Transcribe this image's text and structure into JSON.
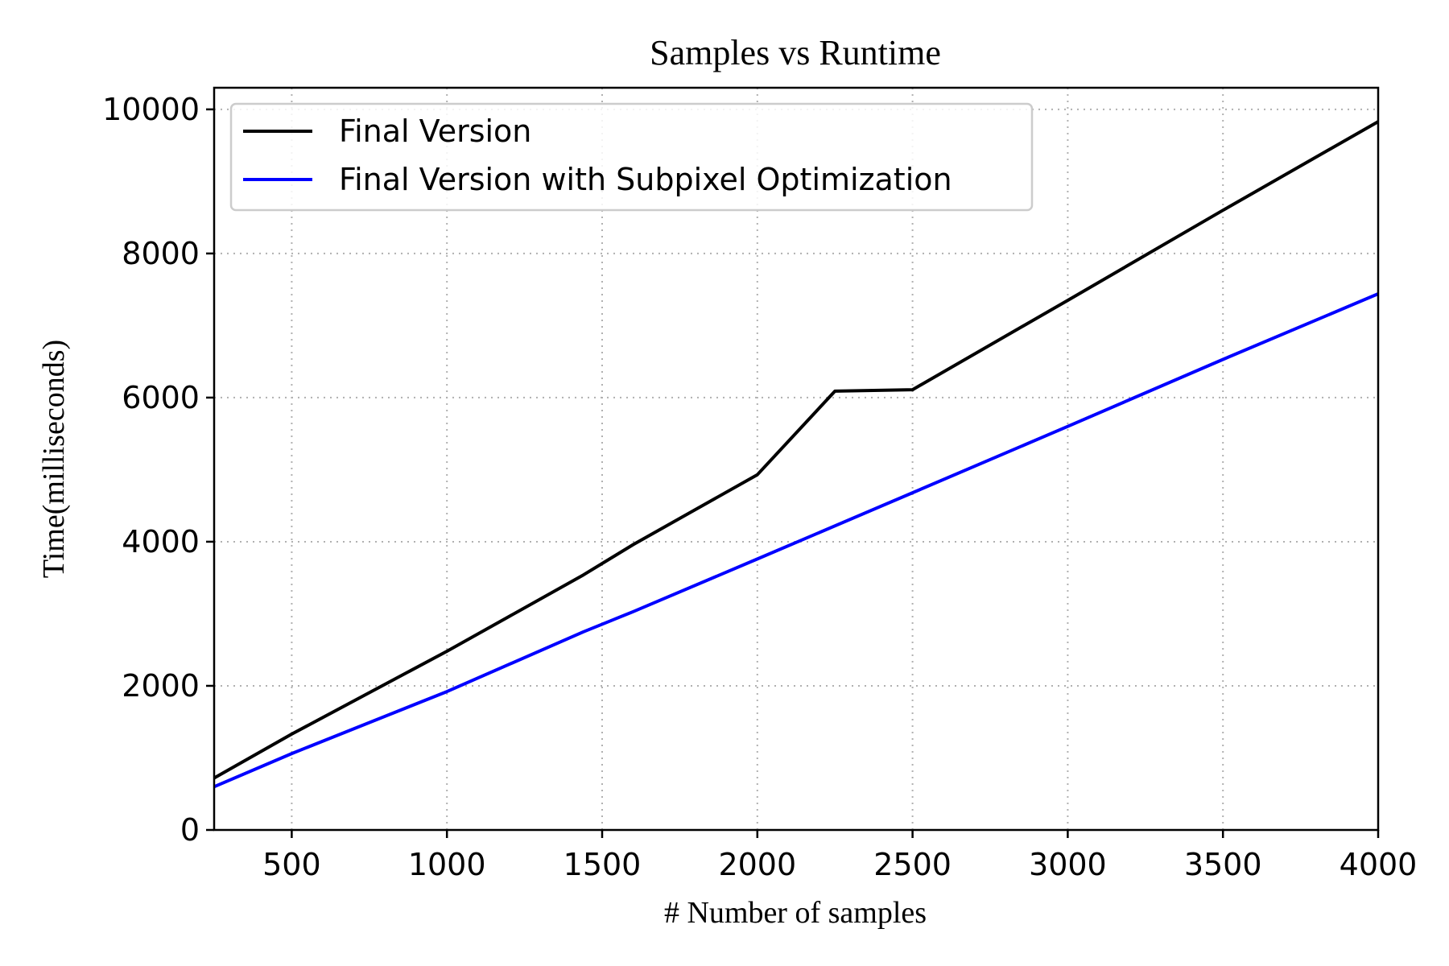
{
  "chart_data": {
    "type": "line",
    "title": "Samples vs Runtime",
    "xlabel": "# Number of samples",
    "ylabel": "Time(milliseconds)",
    "xlim": [
      250,
      4000
    ],
    "ylim": [
      0,
      10300
    ],
    "xticks": [
      500,
      1000,
      1500,
      2000,
      2500,
      3000,
      3500,
      4000
    ],
    "yticks": [
      0,
      2000,
      4000,
      6000,
      8000,
      10000
    ],
    "grid": true,
    "legend_position": "top-left",
    "series": [
      {
        "name": "Final Version",
        "color": "#000000",
        "x": [
          250,
          500,
          1000,
          1440,
          1600,
          2000,
          2250,
          2500,
          3000,
          3500,
          4000
        ],
        "y": [
          720,
          1330,
          2480,
          3540,
          3960,
          4930,
          6090,
          6110,
          7350,
          8600,
          9830
        ]
      },
      {
        "name": "Final Version with Subpixel Optimization",
        "color": "#0000ff",
        "x": [
          250,
          500,
          1000,
          1440,
          1600,
          2000,
          2500,
          3000,
          3500,
          4000
        ],
        "y": [
          600,
          1060,
          1920,
          2750,
          3030,
          3760,
          4680,
          5600,
          6530,
          7440
        ]
      }
    ]
  }
}
